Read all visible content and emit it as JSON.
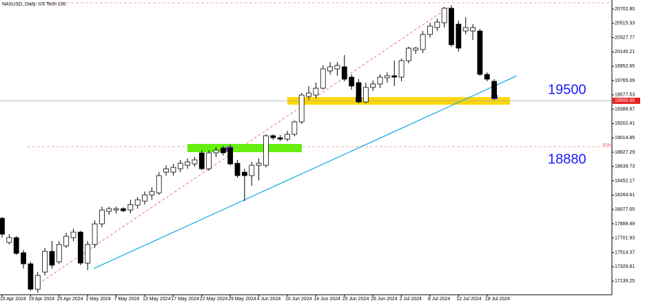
{
  "chart_data": {
    "type": "candlestick",
    "title": "NASUSD, Daily: US Tech 100",
    "categories": [
      "15 Apr 2024",
      null,
      null,
      null,
      "19 Apr 2024",
      null,
      null,
      null,
      "25 Apr 2024",
      null,
      null,
      null,
      "1 May 2024",
      null,
      null,
      null,
      "7 May 2024",
      null,
      null,
      null,
      "13 May 2024",
      null,
      null,
      null,
      "17 May 2024",
      null,
      null,
      null,
      "22 May 2024",
      null,
      null,
      null,
      "29 May 2024",
      null,
      null,
      null,
      "4 Jun 2024",
      null,
      null,
      null,
      "10 Jun 2024",
      null,
      null,
      null,
      "14 Jun 2024",
      null,
      null,
      null,
      "20 Jun 2024",
      null,
      null,
      null,
      "26 Jun 2024",
      null,
      null,
      null,
      "2 Jul 2024",
      null,
      null,
      null,
      "8 Jul 2024",
      null,
      null,
      null,
      "12 Jul 2024",
      null,
      null,
      null,
      "18 Jul 2024",
      null
    ],
    "open": [
      17961,
      17645,
      17708,
      17510,
      17365,
      17032,
      17257,
      17528,
      17392,
      17600,
      17708,
      17780,
      17374,
      17618,
      17888,
      18051,
      18069,
      18087,
      18069,
      18132,
      18186,
      18267,
      18294,
      18565,
      18565,
      18610,
      18655,
      18673,
      18818,
      18610,
      18818,
      18881,
      18881,
      18682,
      18565,
      18520,
      18655,
      18655,
      19043,
      19016,
      18998,
      19061,
      19224,
      19557,
      19575,
      19665,
      19891,
      19918,
      19945,
      19810,
      19738,
      19485,
      19675,
      19720,
      19801,
      19828,
      19810,
      20026,
      20162,
      20171,
      20369,
      20459,
      20522,
      20712,
      20504,
      20414,
      20414,
      20414,
      19846,
      19756
    ],
    "high": [
      17979,
      17753,
      17726,
      17546,
      17392,
      17257,
      17573,
      17663,
      17663,
      17771,
      17825,
      17798,
      17663,
      17934,
      18114,
      18114,
      18114,
      18105,
      18204,
      18240,
      18312,
      18367,
      18565,
      18655,
      18673,
      18727,
      18745,
      18763,
      18854,
      18854,
      18890,
      18908,
      18926,
      18727,
      18610,
      18700,
      18745,
      19061,
      19061,
      19052,
      19106,
      19242,
      19602,
      19693,
      19738,
      19963,
      20008,
      20008,
      20098,
      19846,
      19783,
      19738,
      19765,
      19846,
      19873,
      20026,
      20053,
      20207,
      20207,
      20414,
      20522,
      20576,
      20730,
      20748,
      20549,
      20595,
      20504,
      20441,
      19873,
      19783
    ],
    "low": [
      17708,
      17618,
      17483,
      17302,
      17014,
      16987,
      17212,
      17302,
      17365,
      17573,
      17663,
      17347,
      17284,
      17573,
      17843,
      18006,
      18024,
      18042,
      18024,
      18087,
      18141,
      18204,
      18267,
      18520,
      18520,
      18565,
      18610,
      18637,
      18592,
      18583,
      18763,
      18782,
      18655,
      18493,
      18186,
      18385,
      18457,
      18628,
      18989,
      18971,
      18971,
      19034,
      19196,
      19512,
      19530,
      19647,
      19846,
      19828,
      19756,
      19647,
      19467,
      19467,
      19629,
      19665,
      19738,
      19693,
      19756,
      19990,
      20116,
      20125,
      20324,
      20414,
      20459,
      20207,
      20144,
      20369,
      20297,
      19828,
      19756,
      19512
    ],
    "close": [
      17753,
      17708,
      17501,
      17365,
      17032,
      17212,
      17528,
      17347,
      17618,
      17726,
      17780,
      17374,
      17618,
      17888,
      18069,
      18087,
      18087,
      18060,
      18141,
      18204,
      18267,
      18312,
      18520,
      18610,
      18628,
      18682,
      18700,
      18727,
      18610,
      18818,
      18854,
      18818,
      18673,
      18520,
      18520,
      18655,
      18682,
      19043,
      19016,
      18998,
      19061,
      19224,
      19575,
      19602,
      19665,
      19918,
      19945,
      19963,
      19783,
      19693,
      19485,
      19675,
      19720,
      19810,
      19828,
      19810,
      20026,
      20189,
      20189,
      20369,
      20477,
      20531,
      20712,
      20234,
      20189,
      20459,
      20459,
      19846,
      19783,
      19539
    ],
    "up_color": "#ffffff",
    "down_color": "#000000",
    "ylim": [
      16960,
      20820
    ],
    "yticks": [
      {
        "value": 20702.8,
        "label": "20702.80"
      },
      20515.33,
      20327.77,
      20140.21,
      19952.65,
      19765.09,
      19577.53,
      19389.97,
      19202.41,
      19014.85,
      18827.29,
      18639.73,
      18452.17,
      18264.61,
      18077.05,
      17889.49,
      17701.93,
      17514.37,
      17326.81,
      17139.25
    ],
    "last_price": {
      "value": 19500,
      "label": "19500.00"
    },
    "annotations": [
      "19500",
      "18880",
      "50%"
    ]
  }
}
